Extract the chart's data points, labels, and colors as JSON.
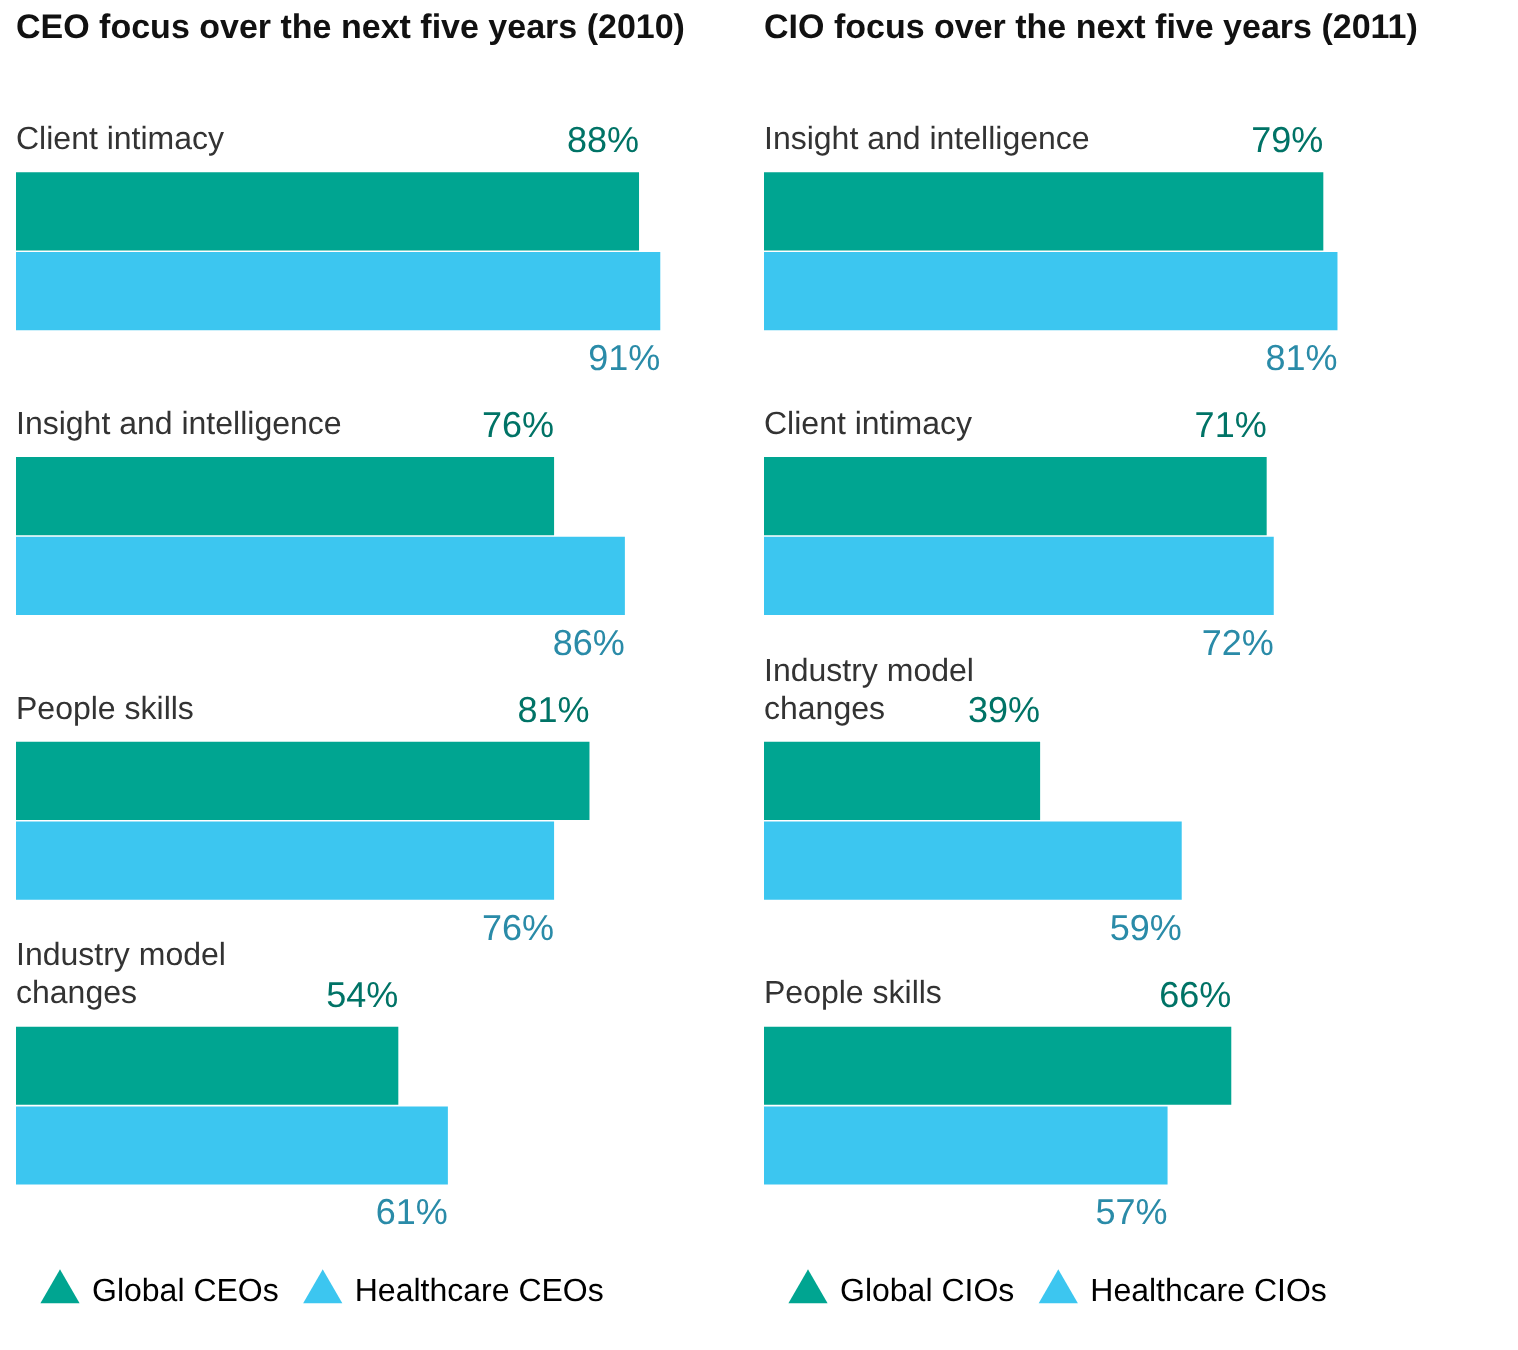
{
  "chart_data": [
    {
      "type": "bar",
      "orientation": "horizontal",
      "title": "CEO focus over the next five years (2010)",
      "categories": [
        "Client intimacy",
        "Insight and intelligence",
        "People skills",
        "Industry model changes"
      ],
      "series": [
        {
          "name": "Global CEOs",
          "color": "#00a591",
          "values": [
            88,
            76,
            81,
            54
          ],
          "value_labels": [
            "88%",
            "76%",
            "81%",
            "54%"
          ]
        },
        {
          "name": "Healthcare CEOs",
          "color": "#3cc6f0",
          "values": [
            91,
            86,
            76,
            61
          ],
          "value_labels": [
            "91%",
            "86%",
            "76%",
            "61%"
          ]
        }
      ],
      "legend": "bottom"
    },
    {
      "type": "bar",
      "orientation": "horizontal",
      "title": "CIO focus over the next five years (2011)",
      "categories": [
        "Insight and intelligence",
        "Client intimacy",
        "Industry model changes",
        "People skills"
      ],
      "series": [
        {
          "name": "Global CIOs",
          "color": "#00a591",
          "values": [
            79,
            71,
            39,
            66
          ],
          "value_labels": [
            "79%",
            "71%",
            "39%",
            "66%"
          ]
        },
        {
          "name": "Healthcare CIOs",
          "color": "#3cc6f0",
          "values": [
            81,
            72,
            59,
            57
          ],
          "value_labels": [
            "81%",
            "72%",
            "59%",
            "57%"
          ]
        }
      ],
      "legend": "bottom"
    }
  ]
}
